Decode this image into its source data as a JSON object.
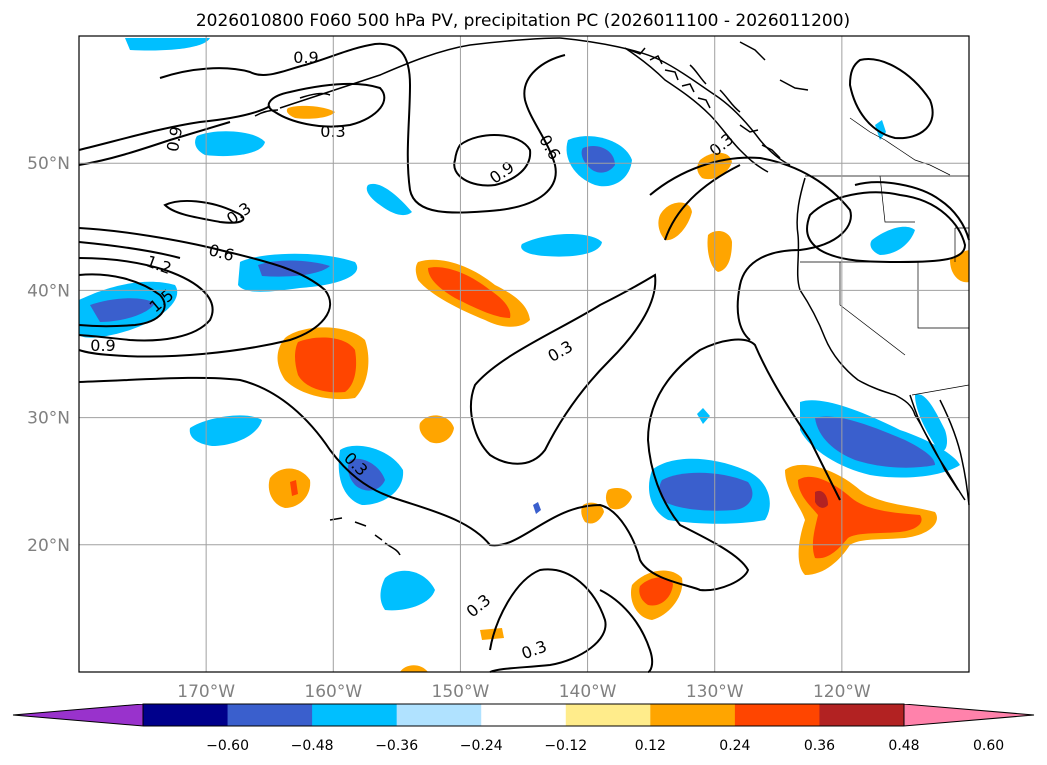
{
  "title": "2026010800 F060 500 hPa PV, precipitation PC (2026011100 - 2026011200)",
  "map": {
    "lat_labels": [
      "50°N",
      "40°N",
      "30°N",
      "20°N"
    ],
    "lon_labels": [
      "170°W",
      "160°W",
      "150°W",
      "140°W",
      "130°W",
      "120°W"
    ],
    "lat_values": [
      50,
      40,
      30,
      20
    ],
    "lon_values": [
      -170,
      -160,
      -150,
      -140,
      -130,
      -120
    ],
    "extent": {
      "lon_min": -180,
      "lon_max": -110,
      "lat_min": 10,
      "lat_max": 60
    },
    "contour_labels": [
      "0.9",
      "0.3",
      "0.9",
      "0.9",
      "0.6",
      "0.3",
      "0.6",
      "1.2",
      "1.5",
      "0.9",
      "0.3",
      "0.3",
      "0.3",
      "0.3",
      "0.3"
    ]
  },
  "colorbar": {
    "tick_labels": [
      "−0.60",
      "−0.48",
      "−0.36",
      "−0.24",
      "−0.12",
      "0.12",
      "0.24",
      "0.36",
      "0.48",
      "0.60"
    ],
    "colors": [
      "#9932cc",
      "#00008b",
      "#3a5fcd",
      "#00bfff",
      "#b0e2ff",
      "#ffffff",
      "#ffec8b",
      "#ffa500",
      "#ff4500",
      "#b22222",
      "#ff82ab"
    ]
  }
}
